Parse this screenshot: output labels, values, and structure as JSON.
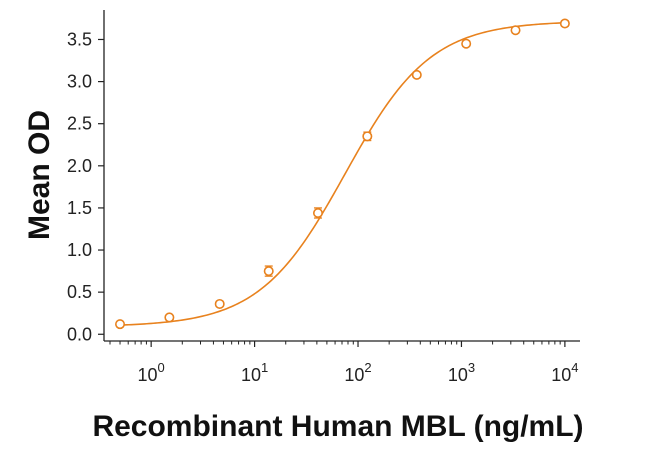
{
  "chart_data": {
    "type": "scatter",
    "title": "",
    "xlabel": "Recombinant Human MBL (ng/mL)",
    "ylabel": "Mean OD",
    "x_scale": "log",
    "xlim": [
      0.35,
      14000
    ],
    "ylim": [
      -0.08,
      3.85
    ],
    "y_ticks": [
      "0.0",
      "0.5",
      "1.0",
      "1.5",
      "2.0",
      "2.5",
      "3.0",
      "3.5"
    ],
    "x_ticks": [
      {
        "base": "10",
        "exp": "0",
        "value": 1
      },
      {
        "base": "10",
        "exp": "1",
        "value": 10
      },
      {
        "base": "10",
        "exp": "2",
        "value": 100
      },
      {
        "base": "10",
        "exp": "3",
        "value": 1000
      },
      {
        "base": "10",
        "exp": "4",
        "value": 10000
      }
    ],
    "series": [
      {
        "name": "Mean OD",
        "color": "#E8821E",
        "points": [
          {
            "x": 0.5,
            "y": 0.12,
            "err": 0.02
          },
          {
            "x": 1.5,
            "y": 0.2,
            "err": 0.02
          },
          {
            "x": 4.6,
            "y": 0.36,
            "err": 0.03
          },
          {
            "x": 13.7,
            "y": 0.75,
            "err": 0.06
          },
          {
            "x": 41,
            "y": 1.44,
            "err": 0.06
          },
          {
            "x": 123,
            "y": 2.35,
            "err": 0.05
          },
          {
            "x": 370,
            "y": 3.08,
            "err": 0.03
          },
          {
            "x": 1111,
            "y": 3.45,
            "err": 0.03
          },
          {
            "x": 3333,
            "y": 3.61,
            "err": 0.03
          },
          {
            "x": 10000,
            "y": 3.69,
            "err": 0.03
          }
        ],
        "fit": {
          "model": "4PL",
          "bottom": 0.09,
          "top": 3.72,
          "ec50": 75,
          "hill": 1.05
        }
      }
    ]
  }
}
